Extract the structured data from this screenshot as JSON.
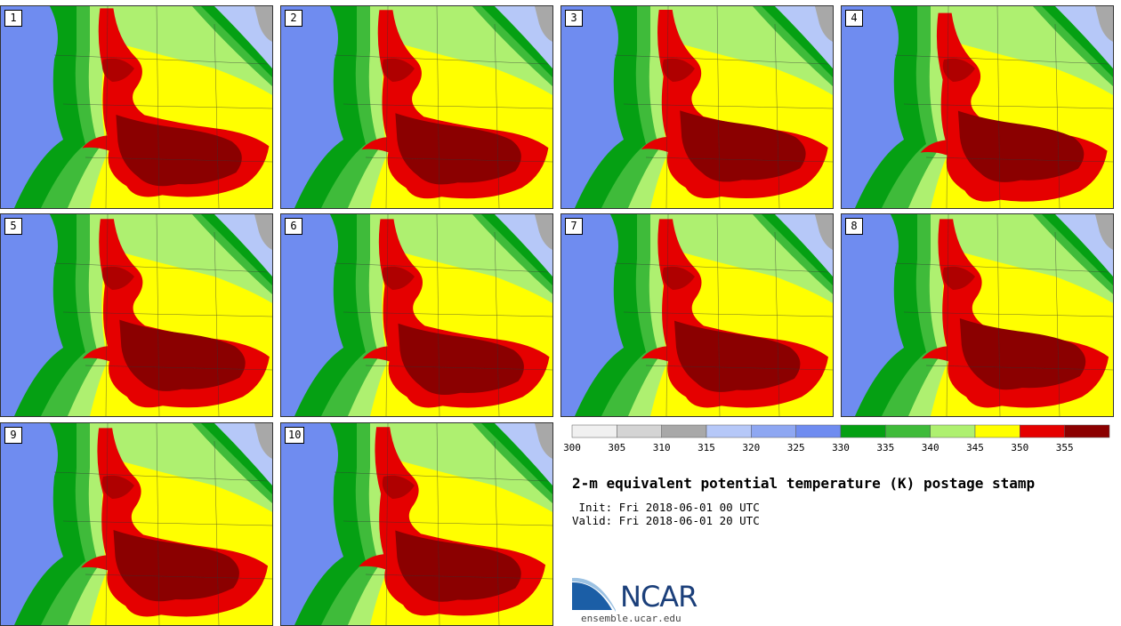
{
  "panels": [
    {
      "label": "1"
    },
    {
      "label": "2"
    },
    {
      "label": "3"
    },
    {
      "label": "4"
    },
    {
      "label": "5"
    },
    {
      "label": "6"
    },
    {
      "label": "7"
    },
    {
      "label": "8"
    },
    {
      "label": "9"
    },
    {
      "label": "10"
    }
  ],
  "colorbar": {
    "ticks": [
      "300",
      "305",
      "310",
      "315",
      "320",
      "325",
      "330",
      "335",
      "340",
      "345",
      "350",
      "355"
    ],
    "colors": [
      "#f0f0f0",
      "#d4d4d4",
      "#a8a8a8",
      "#b6c8f8",
      "#8ea7f2",
      "#6f8cf0",
      "#05a013",
      "#3fbb3a",
      "#aef070",
      "#ffff00",
      "#e50000",
      "#8b0000"
    ]
  },
  "map_colors": {
    "ocean": "#6f8cf0",
    "green_dark": "#05a013",
    "green_mid": "#3fbb3a",
    "green_light": "#aef070",
    "yellow": "#ffff00",
    "red": "#e50000",
    "dark_red": "#8b0000",
    "gray": "#a8a8a8",
    "light_blue": "#b6c8f8"
  },
  "title": "2-m equivalent potential temperature (K) postage stamp",
  "init": " Init: Fri 2018-06-01 00 UTC",
  "valid": "Valid: Fri 2018-06-01 20 UTC",
  "logo": {
    "text": "NCAR",
    "site": "ensemble.ucar.edu"
  }
}
